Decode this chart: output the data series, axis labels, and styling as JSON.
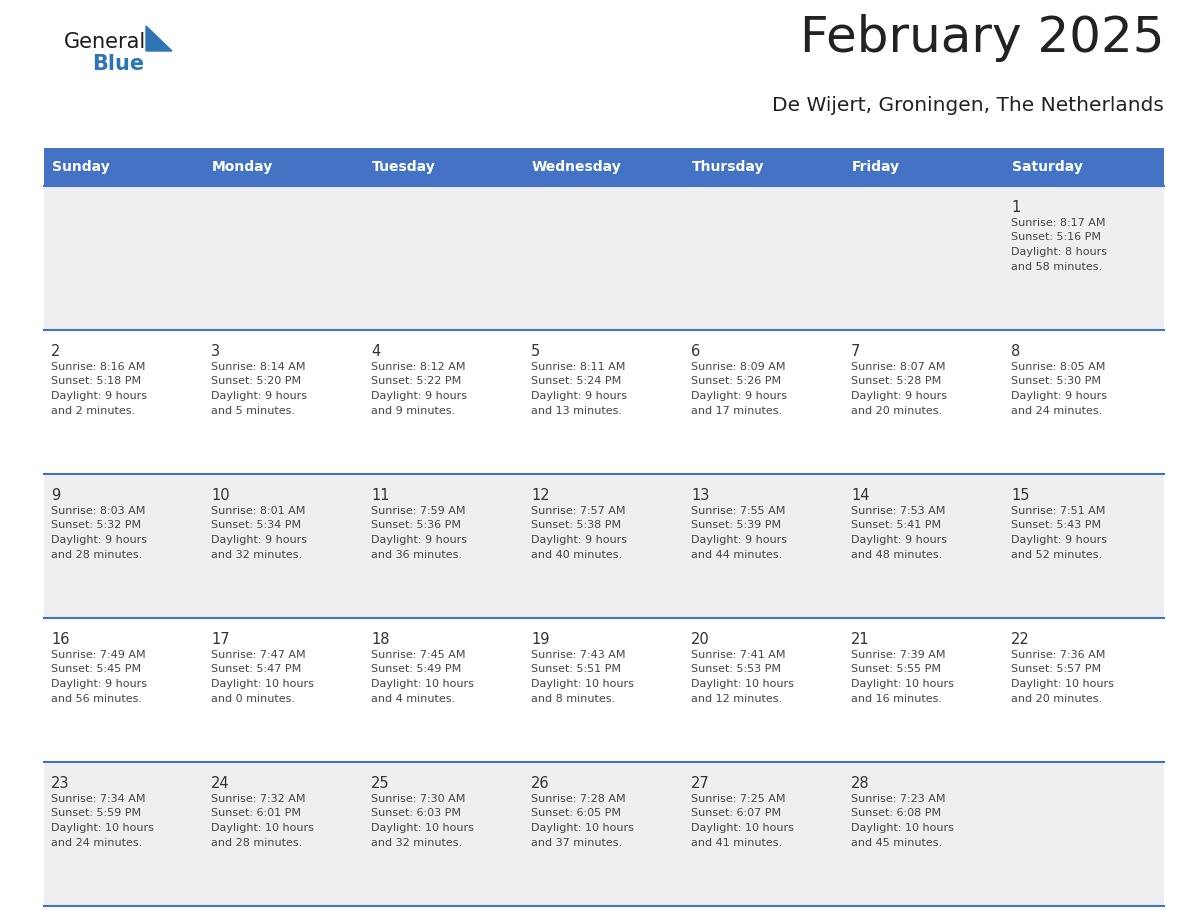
{
  "title": "February 2025",
  "subtitle": "De Wijert, Groningen, The Netherlands",
  "days_of_week": [
    "Sunday",
    "Monday",
    "Tuesday",
    "Wednesday",
    "Thursday",
    "Friday",
    "Saturday"
  ],
  "header_bg": "#4472C4",
  "header_text": "#FFFFFF",
  "cell_bg_light": "#EFEFEF",
  "cell_bg_white": "#FFFFFF",
  "divider_color": "#4472C4",
  "text_color": "#444444",
  "day_num_color": "#333333",
  "title_color": "#222222",
  "calendar_data": [
    [
      null,
      null,
      null,
      null,
      null,
      null,
      {
        "day": 1,
        "sunrise": "8:17 AM",
        "sunset": "5:16 PM",
        "daylight": "8 hours and 58 minutes."
      }
    ],
    [
      {
        "day": 2,
        "sunrise": "8:16 AM",
        "sunset": "5:18 PM",
        "daylight": "9 hours and 2 minutes."
      },
      {
        "day": 3,
        "sunrise": "8:14 AM",
        "sunset": "5:20 PM",
        "daylight": "9 hours and 5 minutes."
      },
      {
        "day": 4,
        "sunrise": "8:12 AM",
        "sunset": "5:22 PM",
        "daylight": "9 hours and 9 minutes."
      },
      {
        "day": 5,
        "sunrise": "8:11 AM",
        "sunset": "5:24 PM",
        "daylight": "9 hours and 13 minutes."
      },
      {
        "day": 6,
        "sunrise": "8:09 AM",
        "sunset": "5:26 PM",
        "daylight": "9 hours and 17 minutes."
      },
      {
        "day": 7,
        "sunrise": "8:07 AM",
        "sunset": "5:28 PM",
        "daylight": "9 hours and 20 minutes."
      },
      {
        "day": 8,
        "sunrise": "8:05 AM",
        "sunset": "5:30 PM",
        "daylight": "9 hours and 24 minutes."
      }
    ],
    [
      {
        "day": 9,
        "sunrise": "8:03 AM",
        "sunset": "5:32 PM",
        "daylight": "9 hours and 28 minutes."
      },
      {
        "day": 10,
        "sunrise": "8:01 AM",
        "sunset": "5:34 PM",
        "daylight": "9 hours and 32 minutes."
      },
      {
        "day": 11,
        "sunrise": "7:59 AM",
        "sunset": "5:36 PM",
        "daylight": "9 hours and 36 minutes."
      },
      {
        "day": 12,
        "sunrise": "7:57 AM",
        "sunset": "5:38 PM",
        "daylight": "9 hours and 40 minutes."
      },
      {
        "day": 13,
        "sunrise": "7:55 AM",
        "sunset": "5:39 PM",
        "daylight": "9 hours and 44 minutes."
      },
      {
        "day": 14,
        "sunrise": "7:53 AM",
        "sunset": "5:41 PM",
        "daylight": "9 hours and 48 minutes."
      },
      {
        "day": 15,
        "sunrise": "7:51 AM",
        "sunset": "5:43 PM",
        "daylight": "9 hours and 52 minutes."
      }
    ],
    [
      {
        "day": 16,
        "sunrise": "7:49 AM",
        "sunset": "5:45 PM",
        "daylight": "9 hours and 56 minutes."
      },
      {
        "day": 17,
        "sunrise": "7:47 AM",
        "sunset": "5:47 PM",
        "daylight": "10 hours and 0 minutes."
      },
      {
        "day": 18,
        "sunrise": "7:45 AM",
        "sunset": "5:49 PM",
        "daylight": "10 hours and 4 minutes."
      },
      {
        "day": 19,
        "sunrise": "7:43 AM",
        "sunset": "5:51 PM",
        "daylight": "10 hours and 8 minutes."
      },
      {
        "day": 20,
        "sunrise": "7:41 AM",
        "sunset": "5:53 PM",
        "daylight": "10 hours and 12 minutes."
      },
      {
        "day": 21,
        "sunrise": "7:39 AM",
        "sunset": "5:55 PM",
        "daylight": "10 hours and 16 minutes."
      },
      {
        "day": 22,
        "sunrise": "7:36 AM",
        "sunset": "5:57 PM",
        "daylight": "10 hours and 20 minutes."
      }
    ],
    [
      {
        "day": 23,
        "sunrise": "7:34 AM",
        "sunset": "5:59 PM",
        "daylight": "10 hours and 24 minutes."
      },
      {
        "day": 24,
        "sunrise": "7:32 AM",
        "sunset": "6:01 PM",
        "daylight": "10 hours and 28 minutes."
      },
      {
        "day": 25,
        "sunrise": "7:30 AM",
        "sunset": "6:03 PM",
        "daylight": "10 hours and 32 minutes."
      },
      {
        "day": 26,
        "sunrise": "7:28 AM",
        "sunset": "6:05 PM",
        "daylight": "10 hours and 37 minutes."
      },
      {
        "day": 27,
        "sunrise": "7:25 AM",
        "sunset": "6:07 PM",
        "daylight": "10 hours and 41 minutes."
      },
      {
        "day": 28,
        "sunrise": "7:23 AM",
        "sunset": "6:08 PM",
        "daylight": "10 hours and 45 minutes."
      },
      null
    ]
  ],
  "logo_text_general": "General",
  "logo_text_blue": "Blue",
  "logo_triangle_color": "#2E75B6"
}
